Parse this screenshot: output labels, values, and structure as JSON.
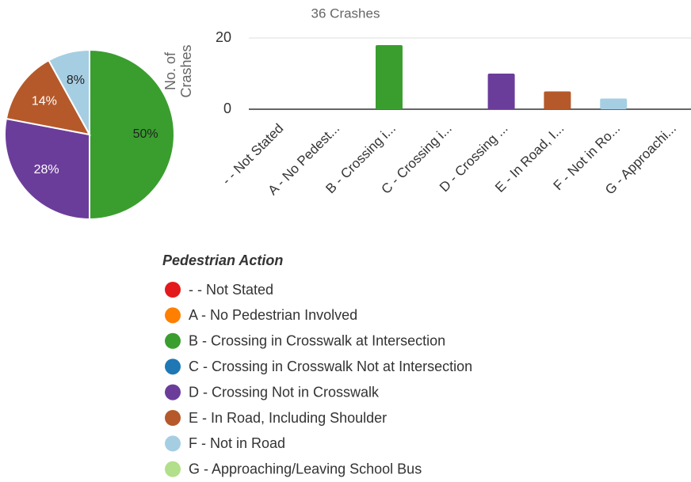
{
  "chart_data": [
    {
      "type": "pie",
      "values": [
        50,
        28,
        14,
        8
      ],
      "value_labels": [
        "50%",
        "28%",
        "14%",
        "8%"
      ],
      "colors": [
        "#3a9e2f",
        "#6b3d9a",
        "#b5592a",
        "#a6cee3"
      ],
      "label_colors": [
        "#222222",
        "#ffffff",
        "#ffffff",
        "#222222"
      ]
    },
    {
      "type": "bar",
      "title": "36 Crashes",
      "y_label": "No. of Crashes",
      "categories": [
        "- - Not Stated",
        "A - No Pedest...",
        "B - Crossing i...",
        "C - Crossing i...",
        "D - Crossing ...",
        "E - In Road, I...",
        "F - Not in Ro...",
        "G - Approachi..."
      ],
      "values": [
        0,
        0,
        18,
        0,
        10,
        5,
        3,
        0
      ],
      "colors": [
        "#e31a1c",
        "#ff7f00",
        "#3a9e2f",
        "#1f78b4",
        "#6b3d9a",
        "#b5592a",
        "#a6cee3",
        "#b2df8a"
      ],
      "ylim": [
        0,
        20
      ],
      "yticks": [
        0,
        20
      ],
      "grid": true
    }
  ],
  "legend": {
    "title": "Pedestrian Action",
    "items": [
      {
        "name": "- - Not Stated",
        "color": "#e31a1c"
      },
      {
        "name": "A - No Pedestrian Involved",
        "color": "#ff7f00"
      },
      {
        "name": "B - Crossing in Crosswalk at Intersection",
        "color": "#3a9e2f"
      },
      {
        "name": "C - Crossing in Crosswalk Not at Intersection",
        "color": "#1f78b4"
      },
      {
        "name": "D - Crossing Not in Crosswalk",
        "color": "#6b3d9a"
      },
      {
        "name": "E - In Road, Including Shoulder",
        "color": "#b5592a"
      },
      {
        "name": "F - Not in Road",
        "color": "#a6cee3"
      },
      {
        "name": "G - Approaching/Leaving School Bus",
        "color": "#b2df8a"
      }
    ]
  }
}
